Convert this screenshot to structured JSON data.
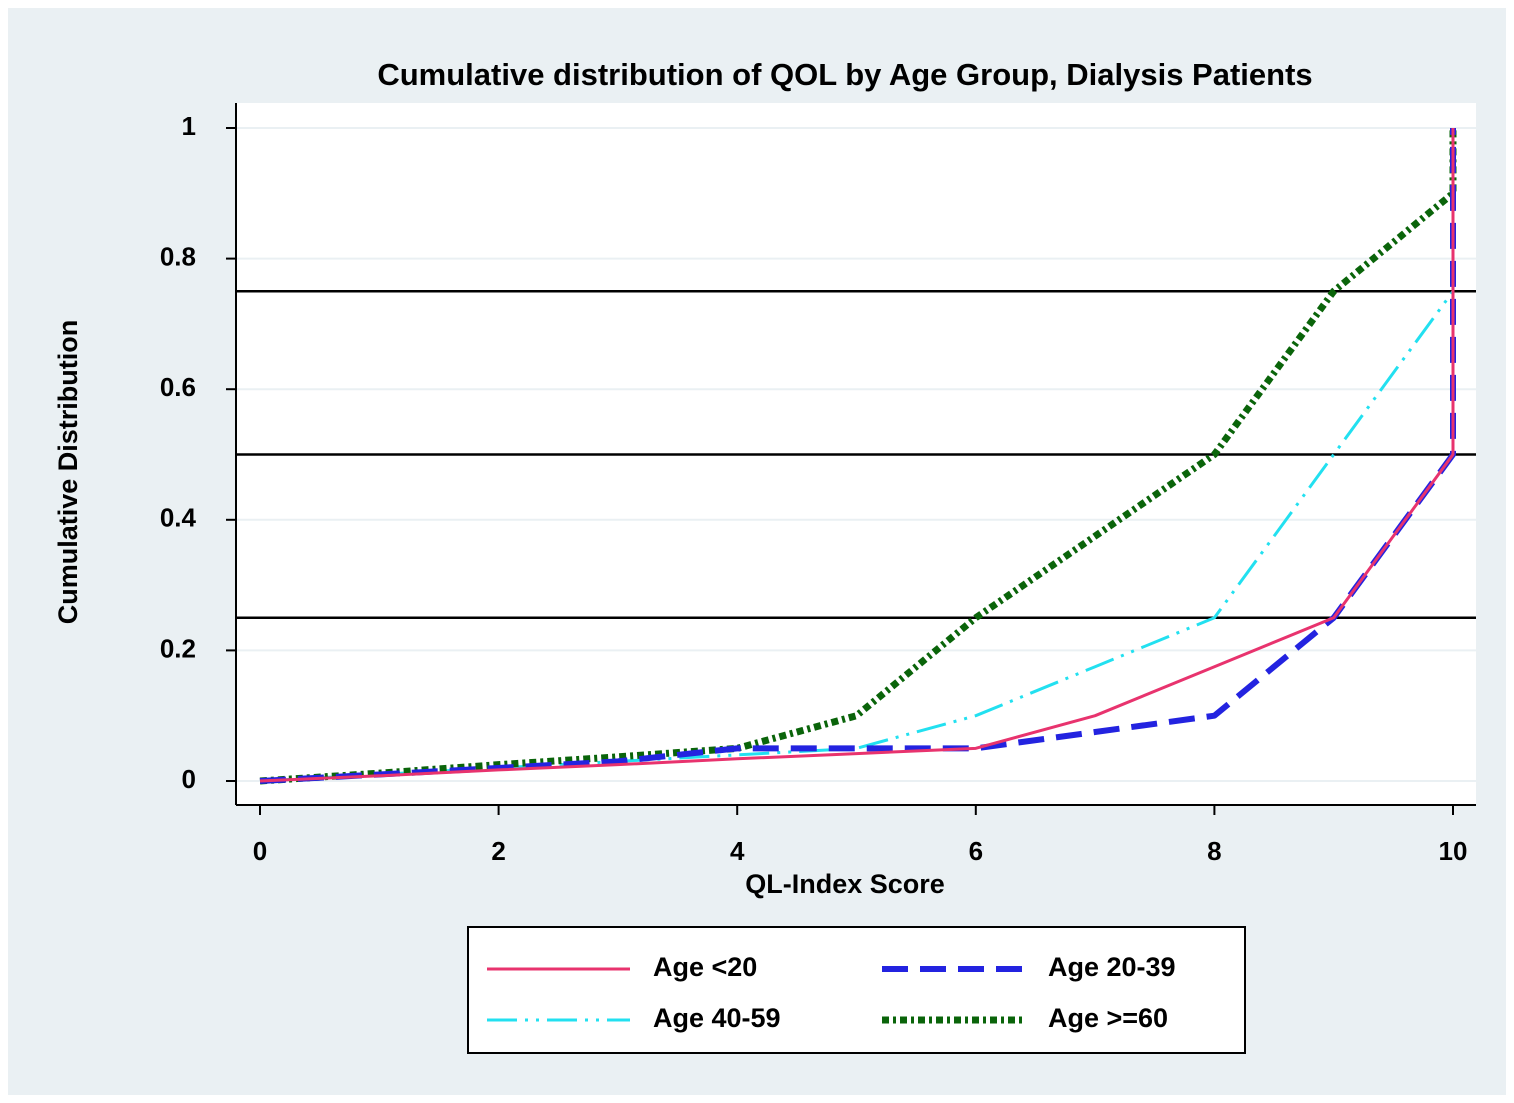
{
  "chart_data": {
    "type": "line",
    "title": "Cumulative distribution of QOL by Age Group, Dialysis Patients",
    "xlabel": "QL-Index Score",
    "ylabel": "Cumulative Distribution",
    "x": [
      0,
      1,
      2,
      3,
      4,
      5,
      6,
      7,
      8,
      9,
      10,
      10
    ],
    "series": [
      {
        "name": "Age <20",
        "color": "#e8336e",
        "values": [
          0,
          0.008,
          0.017,
          0.025,
          0.034,
          0.042,
          0.05,
          0.1,
          0.175,
          0.25,
          0.5,
          1
        ]
      },
      {
        "name": "Age 20-39",
        "color": "#2323e0",
        "values": [
          0,
          0.01,
          0.02,
          0.03,
          0.05,
          0.05,
          0.05,
          0.075,
          0.1,
          0.25,
          0.5,
          1
        ]
      },
      {
        "name": "Age 40-59",
        "color": "#22e0f0",
        "values": [
          0,
          0.01,
          0.02,
          0.03,
          0.04,
          0.05,
          0.1,
          0.175,
          0.25,
          0.5,
          0.75,
          1
        ]
      },
      {
        "name": "Age >=60",
        "color": "#0a640a",
        "values": [
          0,
          0.012,
          0.025,
          0.037,
          0.05,
          0.1,
          0.25,
          0.375,
          0.5,
          0.75,
          0.9,
          1
        ]
      }
    ],
    "xlim": [
      0,
      10
    ],
    "xticks": [
      0,
      2,
      4,
      6,
      8,
      10
    ],
    "ylim": [
      0,
      1
    ],
    "yticks": [
      0,
      0.2,
      0.4,
      0.6,
      0.8,
      1
    ],
    "hlines": [
      0.25,
      0.5,
      0.75
    ],
    "grid": true
  }
}
